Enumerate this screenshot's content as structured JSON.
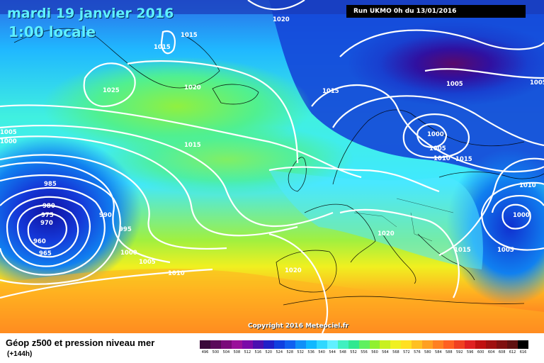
{
  "header": {
    "date": "mardi 19 janvier 2016",
    "time": "1:00 locale",
    "run": "Run UKMO 0h du 13/01/2016"
  },
  "footer": {
    "title": "Géop z500 et pression niveau mer",
    "subtitle": "(+144h)",
    "copyright": "Copyright 2016 Meteociel.fr"
  },
  "isobar_labels": [
    {
      "text": "1020",
      "name": "isobar-label-1020-north"
    },
    {
      "text": "1015",
      "name": "isobar-label-1015-greenland-a"
    },
    {
      "text": "1015",
      "name": "isobar-label-1015-greenland-b"
    },
    {
      "text": "1025",
      "name": "isobar-label-1025-greenland"
    },
    {
      "text": "1020",
      "name": "isobar-label-1020-iceland"
    },
    {
      "text": "1015",
      "name": "isobar-label-1015-norwegian-sea"
    },
    {
      "text": "1005",
      "name": "isobar-label-1005-barents"
    },
    {
      "text": "1005",
      "name": "isobar-label-1005-east"
    },
    {
      "text": "1000",
      "name": "isobar-label-1000-scandinavia"
    },
    {
      "text": "1005",
      "name": "isobar-label-1005-scandinavia"
    },
    {
      "text": "1010",
      "name": "isobar-label-1010-scandinavia"
    },
    {
      "text": "1015",
      "name": "isobar-label-1015-baltic"
    },
    {
      "text": "1005",
      "name": "isobar-label-1005-west-edge"
    },
    {
      "text": "1000",
      "name": "isobar-label-1000-west-edge"
    },
    {
      "text": "1015",
      "name": "isobar-label-1015-atlantic"
    },
    {
      "text": "985",
      "name": "isobar-label-985"
    },
    {
      "text": "980",
      "name": "isobar-label-980"
    },
    {
      "text": "975",
      "name": "isobar-label-975"
    },
    {
      "text": "970",
      "name": "isobar-label-970"
    },
    {
      "text": "960",
      "name": "isobar-label-960"
    },
    {
      "text": "965",
      "name": "isobar-label-965"
    },
    {
      "text": "990",
      "name": "isobar-label-990"
    },
    {
      "text": "995",
      "name": "isobar-label-995"
    },
    {
      "text": "1000",
      "name": "isobar-label-1000-atlantic"
    },
    {
      "text": "1005",
      "name": "isobar-label-1005-atlantic"
    },
    {
      "text": "1010",
      "name": "isobar-label-1010-atlantic"
    },
    {
      "text": "1020",
      "name": "isobar-label-1020-alps"
    },
    {
      "text": "1020",
      "name": "isobar-label-1020-iberia"
    },
    {
      "text": "1010",
      "name": "isobar-label-1010-russia"
    },
    {
      "text": "1000",
      "name": "isobar-label-1000-east-low"
    },
    {
      "text": "1005",
      "name": "isobar-label-1005-east-low"
    },
    {
      "text": "1015",
      "name": "isobar-label-1015-balkans"
    }
  ],
  "legend": {
    "labels": [
      "496",
      "500",
      "504",
      "508",
      "512",
      "516",
      "520",
      "524",
      "528",
      "532",
      "536",
      "540",
      "544",
      "548",
      "552",
      "556",
      "560",
      "564",
      "568",
      "572",
      "576",
      "580",
      "584",
      "588",
      "592",
      "596",
      "600",
      "604",
      "608",
      "612",
      "616"
    ],
    "colors": [
      "#3a0a3a",
      "#5a0a5a",
      "#7a0a7a",
      "#9a109a",
      "#7a0aa8",
      "#4a10b0",
      "#2020c8",
      "#1040e0",
      "#1060f0",
      "#1090f8",
      "#10b8ff",
      "#30d8ff",
      "#60f0ff",
      "#40f0c0",
      "#30e890",
      "#60f060",
      "#90f030",
      "#c8f020",
      "#f0f020",
      "#ffe020",
      "#ffc020",
      "#ffa020",
      "#ff8020",
      "#ff6020",
      "#f04020",
      "#e02020",
      "#c01010",
      "#a01010",
      "#801010",
      "#601010",
      "#000000"
    ]
  }
}
